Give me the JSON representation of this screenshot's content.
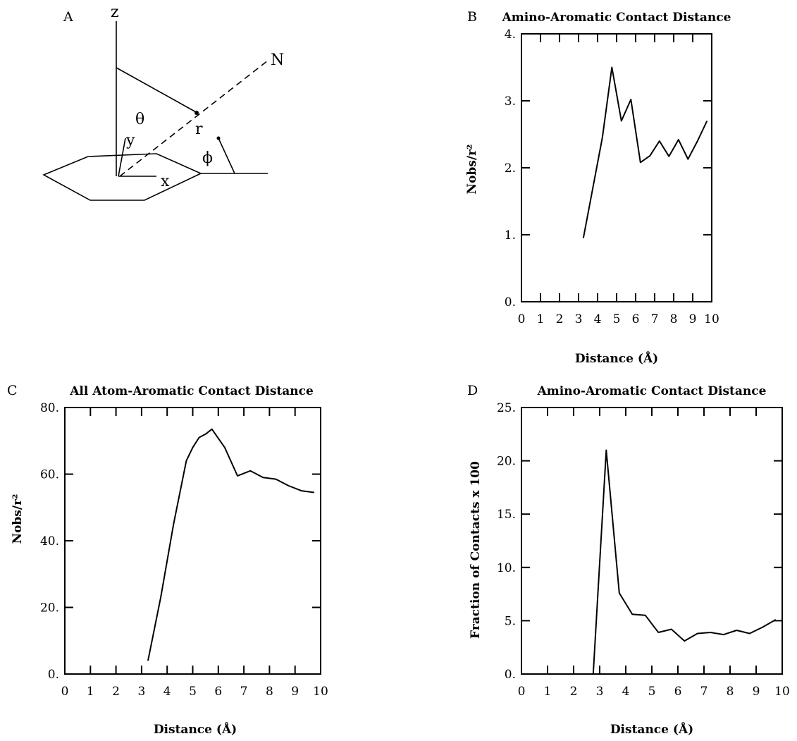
{
  "diagram": {
    "panel_label": "A",
    "axis_z": "z",
    "axis_y": "y",
    "axis_x": "x",
    "symbol_theta": "θ",
    "symbol_r": "r",
    "symbol_phi": "ϕ",
    "label_n": "N"
  },
  "chart_data": [
    {
      "panel": "B",
      "type": "line",
      "title": "Amino-Aromatic Contact Distance",
      "xlabel": "Distance (Å)",
      "ylabel": "Nobs/r²",
      "xlim": [
        0,
        10
      ],
      "ylim": [
        0,
        4
      ],
      "xticks": [
        0,
        1,
        2,
        3,
        4,
        5,
        6,
        7,
        8,
        9,
        10
      ],
      "yticks": [
        0,
        1,
        2,
        3,
        4
      ],
      "yticklabels": [
        "0.",
        "1.",
        "2.",
        "3.",
        "4."
      ],
      "x": [
        3.25,
        3.75,
        4.25,
        4.75,
        5.25,
        5.75,
        6.25,
        6.75,
        7.25,
        7.75,
        8.25,
        8.75,
        9.25,
        9.75
      ],
      "y": [
        0.95,
        1.7,
        2.45,
        3.5,
        2.7,
        3.02,
        2.08,
        2.18,
        2.4,
        2.17,
        2.42,
        2.13,
        2.4,
        2.7
      ]
    },
    {
      "panel": "C",
      "type": "line",
      "title": "All Atom-Aromatic Contact Distance",
      "xlabel": "Distance (Å)",
      "ylabel": "Nobs/r²",
      "xlim": [
        0,
        10
      ],
      "ylim": [
        0,
        80
      ],
      "xticks": [
        0,
        1,
        2,
        3,
        4,
        5,
        6,
        7,
        8,
        9,
        10
      ],
      "yticks": [
        0,
        20,
        40,
        60,
        80
      ],
      "yticklabels": [
        "0.",
        "20.",
        "40.",
        "60.",
        "80."
      ],
      "x": [
        3.25,
        3.75,
        4.25,
        4.75,
        5.0,
        5.25,
        5.5,
        5.75,
        6.25,
        6.75,
        7.25,
        7.75,
        8.25,
        8.75,
        9.25,
        9.75
      ],
      "y": [
        4,
        23,
        45,
        64,
        68,
        71,
        72,
        73.5,
        68,
        59.5,
        61,
        59,
        58.5,
        56.5,
        55,
        54.5
      ]
    },
    {
      "panel": "D",
      "type": "line",
      "title": "Amino-Aromatic Contact Distance",
      "xlabel": "Distance (Å)",
      "ylabel": "Fraction of Contacts x 100",
      "xlim": [
        0,
        10
      ],
      "ylim": [
        0,
        25
      ],
      "xticks": [
        0,
        1,
        2,
        3,
        4,
        5,
        6,
        7,
        8,
        9,
        10
      ],
      "yticks": [
        0,
        5,
        10,
        15,
        20,
        25
      ],
      "yticklabels": [
        "0.",
        "5.",
        "10.",
        "15.",
        "20.",
        "25."
      ],
      "x": [
        2.75,
        3.25,
        3.75,
        4.25,
        4.75,
        5.25,
        5.75,
        6.25,
        6.75,
        7.25,
        7.75,
        8.25,
        8.75,
        9.25,
        9.75
      ],
      "y": [
        0,
        21,
        7.6,
        5.6,
        5.5,
        3.9,
        4.2,
        3.1,
        3.8,
        3.9,
        3.7,
        4.1,
        3.8,
        4.4,
        5.1
      ]
    }
  ]
}
